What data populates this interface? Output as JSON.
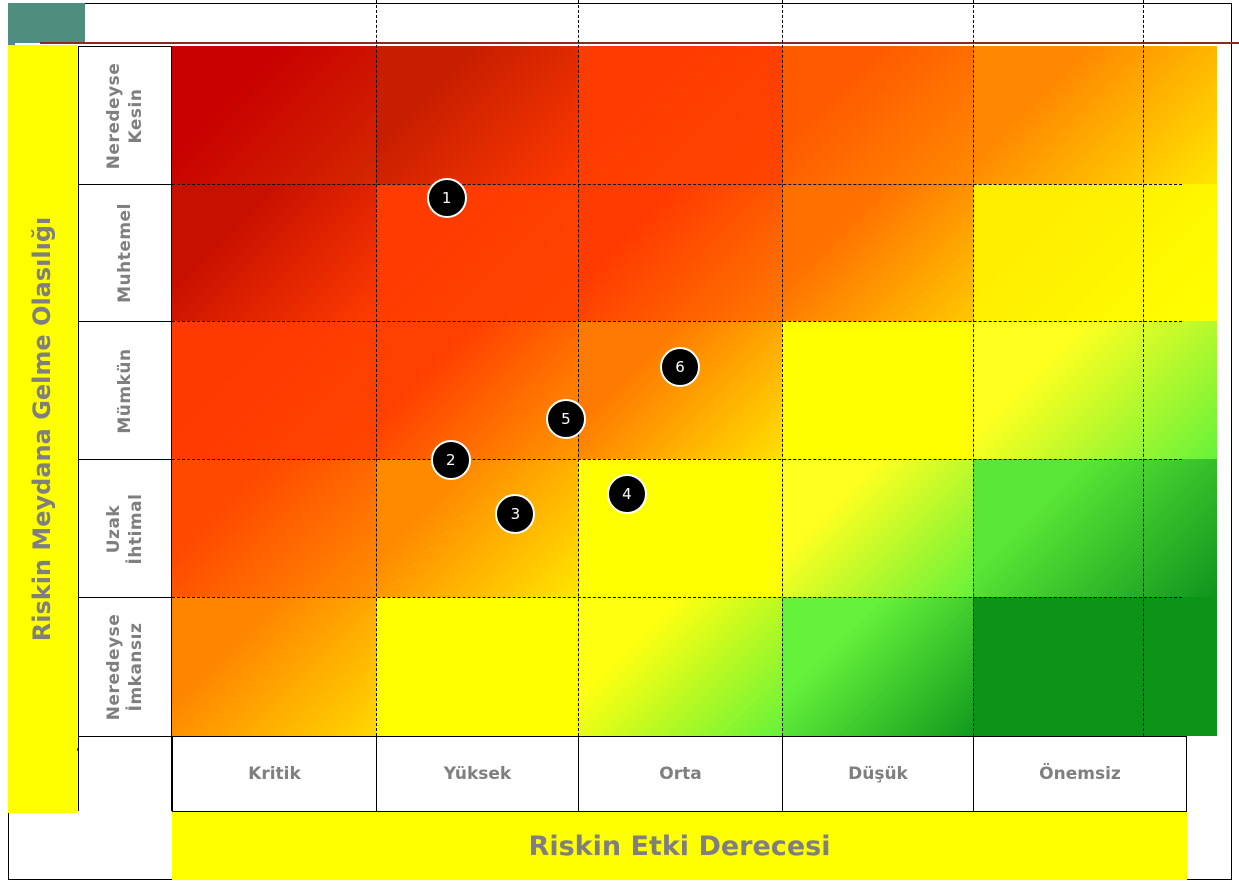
{
  "y_axis_title": "Riskin Meydana Gelme Olasılığı",
  "x_axis_title": "Riskin Etki Derecesi",
  "rows": [
    {
      "label": "Neredeyse\nKesin"
    },
    {
      "label": "Muhtemel"
    },
    {
      "label": "Mümkün"
    },
    {
      "label": "Uzak\nİhtimal"
    },
    {
      "label": "Neredeyse\nİmkansız"
    }
  ],
  "columns": [
    {
      "label": "Kritik"
    },
    {
      "label": "Yüksek"
    },
    {
      "label": "Orta"
    },
    {
      "label": "Düşük"
    },
    {
      "label": "Önemsiz"
    }
  ],
  "cell_colors": [
    [
      [
        "#c80000",
        "#d42800"
      ],
      [
        "#c81e00",
        "#ff3a00"
      ],
      [
        "#ff3c00",
        "#ff4400"
      ],
      [
        "#ff5a00",
        "#ff8a00"
      ],
      [
        "#ff8800",
        "#ffe600"
      ]
    ],
    [
      [
        "#c81000",
        "#ff3c00"
      ],
      [
        "#ff3c00",
        "#ff4400"
      ],
      [
        "#ff3c00",
        "#ff7a00"
      ],
      [
        "#ff7000",
        "#ffc800"
      ],
      [
        "#ffee00",
        "#ffff00"
      ]
    ],
    [
      [
        "#ff3a00",
        "#ff4400"
      ],
      [
        "#ff4000",
        "#ff9a00"
      ],
      [
        "#ff7a00",
        "#ffe000"
      ],
      [
        "#ffff00",
        "#ffff00"
      ],
      [
        "#ffff20",
        "#66f23a"
      ]
    ],
    [
      [
        "#ff4a00",
        "#ff9000"
      ],
      [
        "#ff8a00",
        "#ffe600"
      ],
      [
        "#ffff00",
        "#ffff00"
      ],
      [
        "#ffff20",
        "#66f23a"
      ],
      [
        "#5ae636",
        "#10941e"
      ]
    ],
    [
      [
        "#ff8400",
        "#ffd800"
      ],
      [
        "#ffff00",
        "#ffff00"
      ],
      [
        "#ffff10",
        "#66f23a"
      ],
      [
        "#66f23a",
        "#109a1e"
      ],
      [
        "#0c9418",
        "#0c9418"
      ]
    ]
  ],
  "risks": [
    {
      "id": "1",
      "impact": 1.85,
      "likelihood": 4.4
    },
    {
      "id": "2",
      "impact": 1.87,
      "likelihood": 2.49
    },
    {
      "id": "3",
      "impact": 2.19,
      "likelihood": 2.1
    },
    {
      "id": "4",
      "impact": 2.74,
      "likelihood": 2.25
    },
    {
      "id": "5",
      "impact": 2.44,
      "likelihood": 2.79
    },
    {
      "id": "6",
      "impact": 3.0,
      "likelihood": 3.17
    }
  ]
}
